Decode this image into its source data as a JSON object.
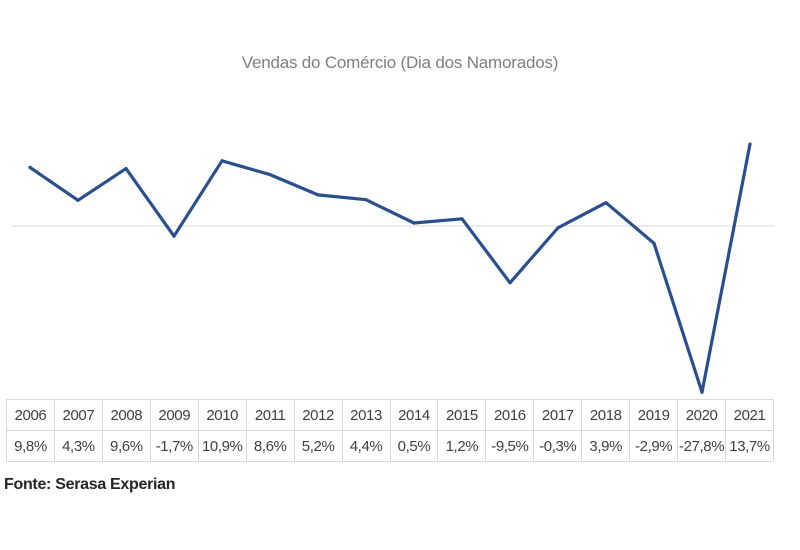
{
  "chart_data": {
    "type": "line",
    "title": "Vendas do Comércio (Dia dos Namorados)",
    "xlabel": "",
    "ylabel": "",
    "ylim": [
      -30,
      15
    ],
    "grid": false,
    "legend": "none",
    "series": [
      {
        "name": "Vendas do Comércio (Dia dos Namorados)",
        "color": "#2a4f8f",
        "values": [
          9.8,
          4.3,
          9.6,
          -1.7,
          10.9,
          8.6,
          5.2,
          4.4,
          0.5,
          1.2,
          -9.5,
          -0.3,
          3.9,
          -2.9,
          -27.8,
          13.7
        ]
      }
    ],
    "categories": [
      "2006",
      "2007",
      "2008",
      "2009",
      "2010",
      "2011",
      "2012",
      "2013",
      "2014",
      "2015",
      "2016",
      "2017",
      "2018",
      "2019",
      "2020",
      "2021"
    ]
  },
  "table": {
    "years": [
      "2006",
      "2007",
      "2008",
      "2009",
      "2010",
      "2011",
      "2012",
      "2013",
      "2014",
      "2015",
      "2016",
      "2017",
      "2018",
      "2019",
      "2020",
      "2021"
    ],
    "values": [
      "9,8%",
      "4,3%",
      "9,6%",
      "-1,7%",
      "10,9%",
      "8,6%",
      "5,2%",
      "4,4%",
      "0,5%",
      "1,2%",
      "-9,5%",
      "-0,3%",
      "3,9%",
      "-2,9%",
      "-27,8%",
      "13,7%"
    ]
  },
  "source": "Fonte: Serasa Experian",
  "colors": {
    "line": "#2a4f8f",
    "zero_line": "#d9d9d9",
    "grid": "#d9d9d9"
  }
}
